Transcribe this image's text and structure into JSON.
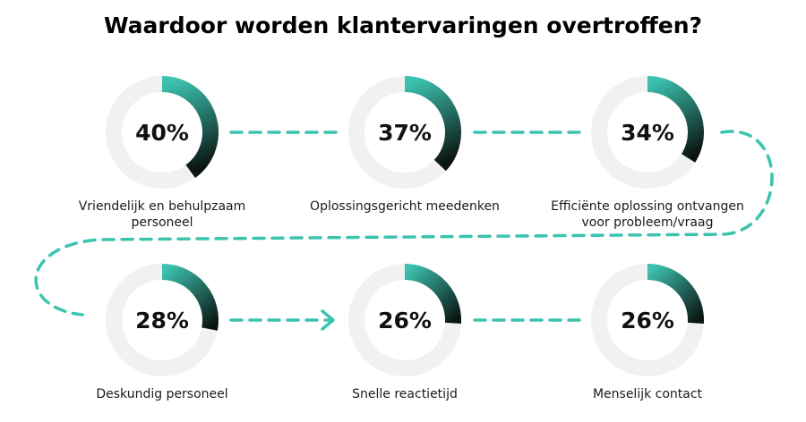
{
  "chart_data": {
    "type": "donut",
    "title": "Waardoor worden klantervaringen overtroffen?",
    "categories": [
      "Vriendelijk en behulpzaam personeel",
      "Oplossingsgericht meedenken",
      "Efficiënte oplossing ontvangen voor probleem/vraag",
      "Deskundig personeel",
      "Snelle reactietijd",
      "Menselijk contact"
    ],
    "values": [
      40,
      37,
      34,
      28,
      26,
      26
    ],
    "value_labels": [
      "40%",
      "37%",
      "34%",
      "28%",
      "26%",
      "26%"
    ],
    "max": 100,
    "color": "#3cc3b0",
    "color_end": "#0b1411",
    "track_color": "#f1f1f4"
  }
}
